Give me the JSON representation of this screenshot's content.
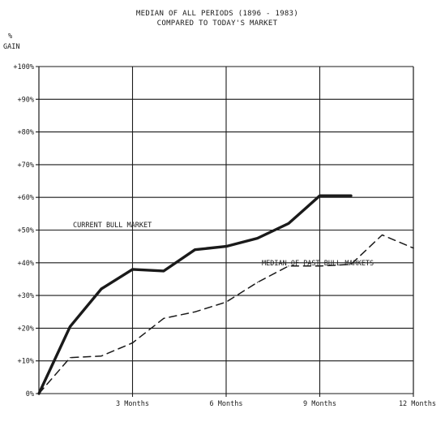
{
  "chart_data": {
    "type": "line",
    "title": "MEDIAN OF ALL PERIODS (1896 - 1983)",
    "subtitle": "COMPARED TO TODAY'S MARKET",
    "ylabel_line1": "%",
    "ylabel_line2": "GAIN",
    "xlabel": "",
    "ylim": [
      0,
      100
    ],
    "xlim": [
      0,
      12
    ],
    "grid": true,
    "y_ticks": [
      0,
      10,
      20,
      30,
      40,
      50,
      60,
      70,
      80,
      90,
      100
    ],
    "y_tick_labels": [
      "0%",
      "+10%",
      "+20%",
      "+30%",
      "+40%",
      "+50%",
      "+60%",
      "+70%",
      "+80%",
      "+90%",
      "+100%"
    ],
    "x_ticks": [
      3,
      6,
      9,
      12
    ],
    "x_tick_labels": [
      "3 Months",
      "6 Months",
      "9 Months",
      "12 Months"
    ],
    "series": [
      {
        "name": "CURRENT BULL MARKET",
        "style": "solid-thick",
        "color": "#1a1a1a",
        "x": [
          0,
          1,
          2,
          3,
          4,
          5,
          6,
          7,
          8,
          9,
          10
        ],
        "y": [
          0,
          20.5,
          32,
          38,
          37.5,
          44,
          45,
          47.5,
          52,
          60.5,
          60.5
        ]
      },
      {
        "name": "MEDIAN OF PAST BULL MARKETS",
        "style": "dashed",
        "color": "#1a1a1a",
        "x": [
          0,
          1,
          2,
          3,
          4,
          5,
          6,
          7,
          8,
          9,
          10,
          11,
          12
        ],
        "y": [
          0,
          11,
          11.5,
          15.5,
          23,
          25,
          28,
          34,
          39,
          39,
          39.5,
          48.5,
          44.5
        ]
      }
    ]
  }
}
